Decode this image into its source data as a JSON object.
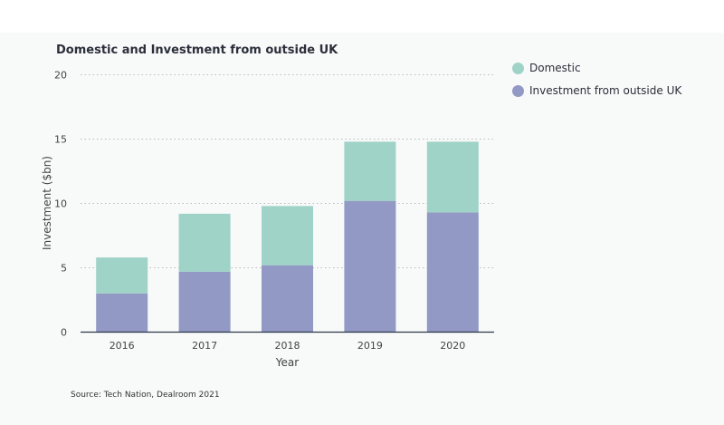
{
  "chart_data": {
    "type": "bar",
    "stacked": true,
    "title": "Domestic and Investment from outside UK",
    "xlabel": "Year",
    "ylabel": "Investment ($bn)",
    "ylim": [
      0,
      20
    ],
    "yticks": [
      0,
      5,
      10,
      15,
      20
    ],
    "categories": [
      "2016",
      "2017",
      "2018",
      "2019",
      "2020"
    ],
    "series": [
      {
        "name": "Investment from outside UK",
        "color": "#9299c4",
        "values": [
          3.0,
          4.7,
          5.2,
          10.2,
          9.3
        ]
      },
      {
        "name": "Domestic",
        "color": "#9fd3c7",
        "values": [
          2.8,
          4.5,
          4.6,
          4.6,
          5.5
        ]
      }
    ],
    "legend": [
      "Domestic",
      "Investment from outside UK"
    ],
    "legend_position": "right",
    "grid": true
  },
  "source": "Source: Tech Nation, Dealroom 2021"
}
